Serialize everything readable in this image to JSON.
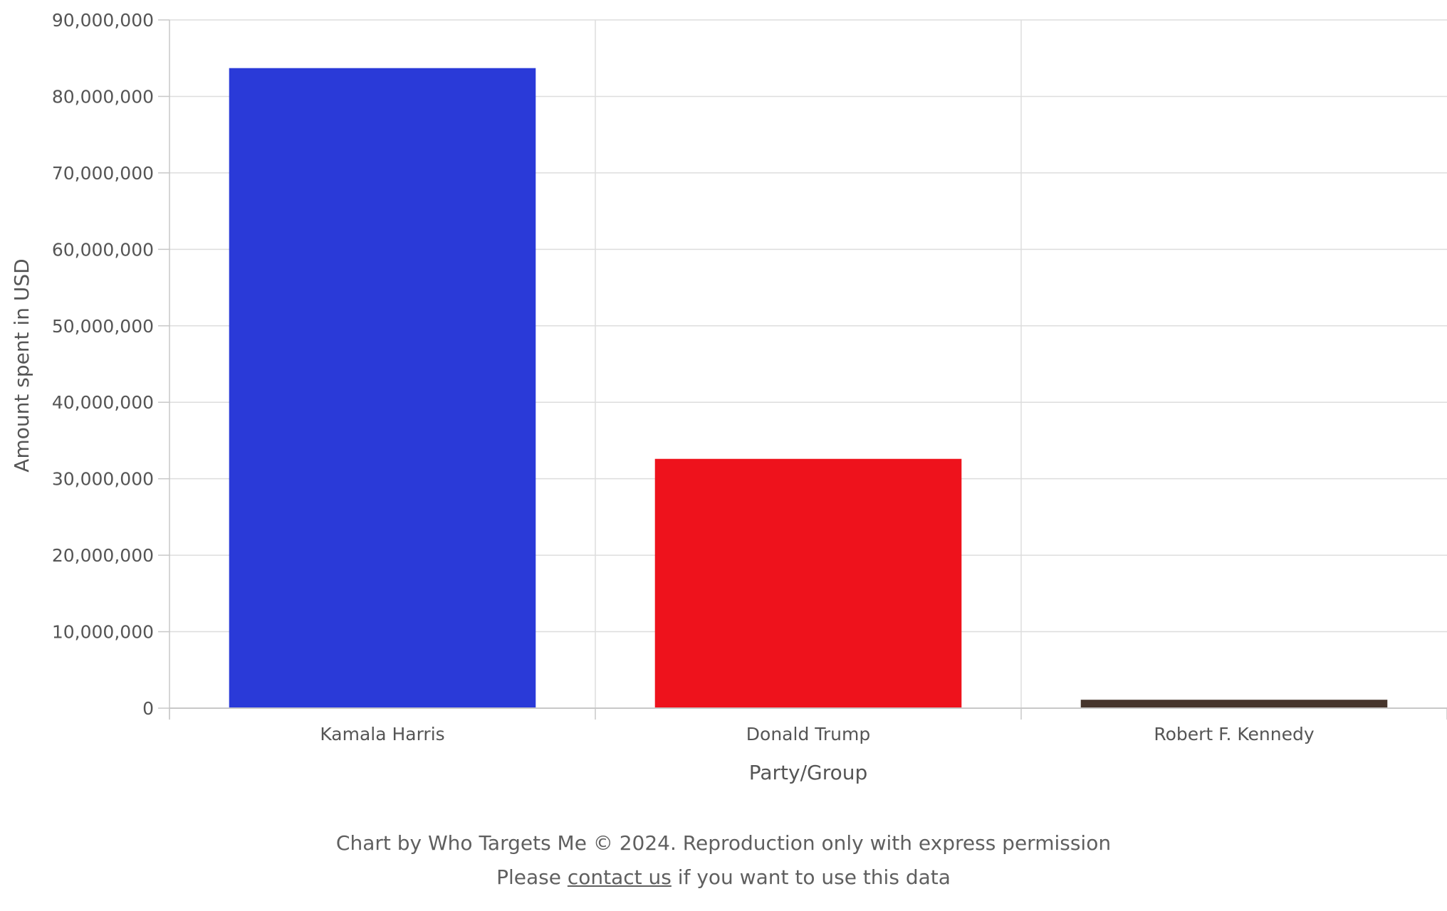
{
  "chart_data": {
    "type": "bar",
    "categories": [
      "Kamala Harris",
      "Donald Trump",
      "Robert F. Kennedy"
    ],
    "values": [
      83700000,
      32600000,
      1100000
    ],
    "colors": [
      "#2a3ad8",
      "#ee121c",
      "#46352c"
    ],
    "xlabel": "Party/Group",
    "ylabel": "Amount spent in USD",
    "ylim": [
      0,
      90000000
    ],
    "yticks": [
      0,
      10000000,
      20000000,
      30000000,
      40000000,
      50000000,
      60000000,
      70000000,
      80000000,
      90000000
    ],
    "ytick_labels": [
      "0",
      "10,000,000",
      "20,000,000",
      "30,000,000",
      "40,000,000",
      "50,000,000",
      "60,000,000",
      "70,000,000",
      "80,000,000",
      "90,000,000"
    ],
    "grid": true,
    "grid_color": "#dddddd",
    "axis_color": "#c8c8c8"
  },
  "footer": {
    "credit": "Chart by Who Targets Me © 2024. Reproduction only with express permission",
    "prefix": "Please ",
    "link_text": "contact us",
    "suffix": " if you want to use this data"
  }
}
